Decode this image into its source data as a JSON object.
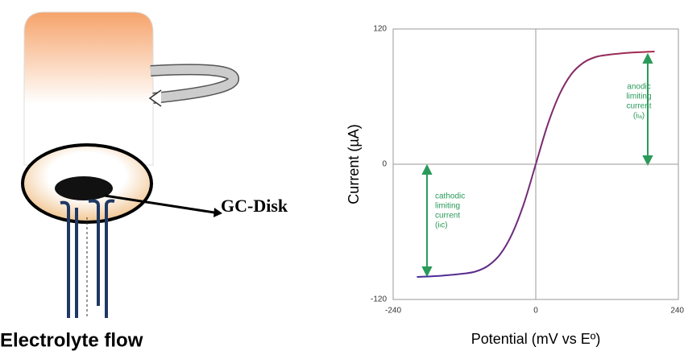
{
  "diagram": {
    "disk_label": "GC-Disk",
    "flow_label": "Electrolyte flow"
  },
  "chart_data": {
    "type": "line",
    "xlabel": "Potential (mV vs Eº)",
    "ylabel": "Current (µA)",
    "x": [
      -200,
      -160,
      -120,
      -100,
      -80,
      -60,
      -40,
      -20,
      0,
      20,
      40,
      60,
      80,
      100,
      120,
      160,
      200
    ],
    "series": [
      {
        "colors": [
          "#3a2ea8",
          "#b3283f"
        ],
        "values": [
          -100,
          -99,
          -97,
          -95,
          -90,
          -80,
          -62,
          -35,
          0,
          35,
          62,
          80,
          90,
          95,
          97,
          99,
          100
        ]
      }
    ],
    "xlim": [
      -240,
      240
    ],
    "xticks": [
      -240,
      0,
      240
    ],
    "ylim": [
      -120,
      120
    ],
    "yticks": [
      -120,
      0,
      120
    ],
    "annotations": [
      [
        "anodic",
        "limiting",
        "current",
        "(iₗₐ)"
      ],
      [
        "cathodic",
        "limiting",
        "current",
        "(iₗc)"
      ]
    ]
  }
}
